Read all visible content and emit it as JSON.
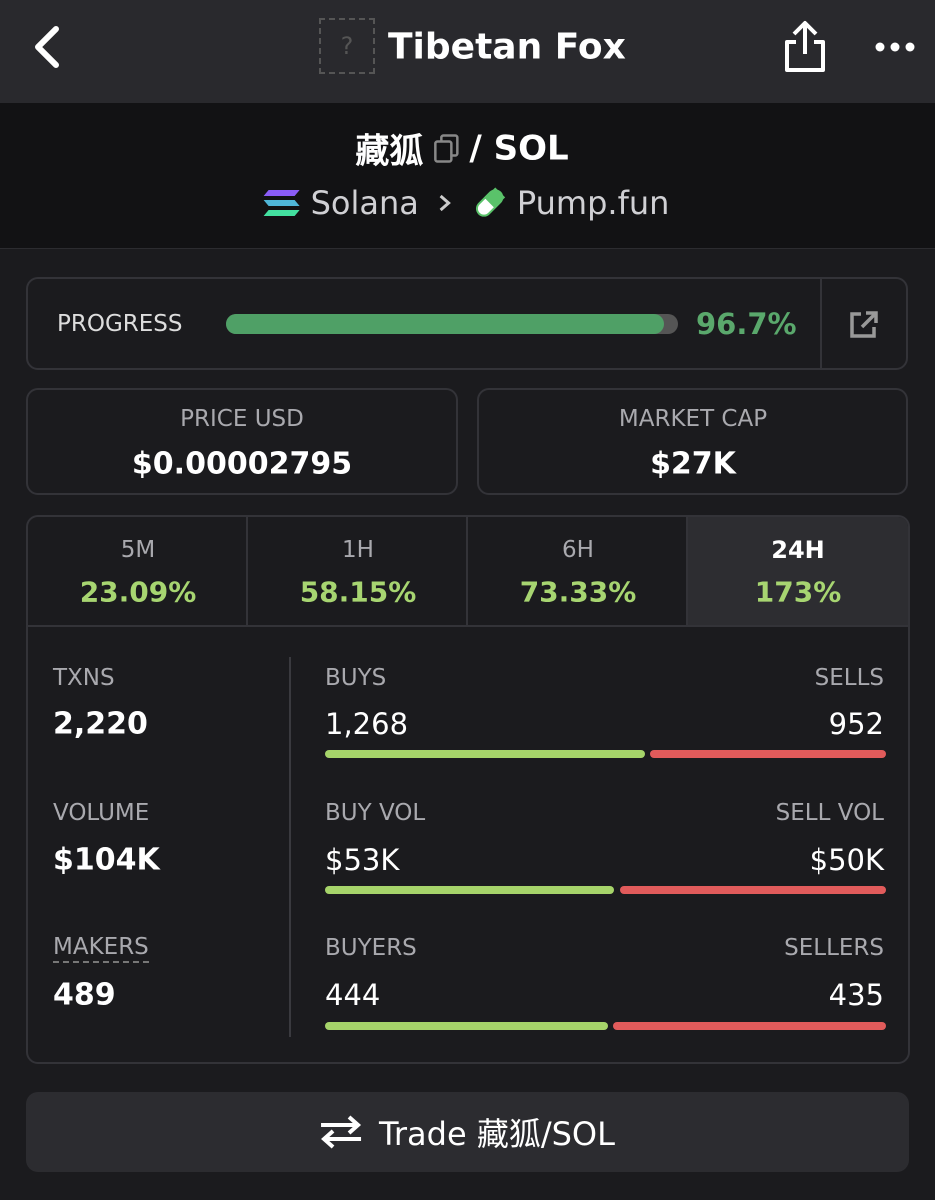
{
  "header": {
    "title": "Tibetan Fox",
    "icon_placeholder": "?"
  },
  "pair": {
    "base": "藏狐",
    "quote": "/ SOL",
    "chain": "Solana",
    "dex": "Pump.fun"
  },
  "progress": {
    "label": "PROGRESS",
    "value": "96.7%"
  },
  "price": {
    "label": "PRICE USD",
    "value": "$0.00002795"
  },
  "market_cap": {
    "label": "MARKET CAP",
    "value": "$27K"
  },
  "tabs": [
    {
      "label": "5M",
      "change": "23.09%"
    },
    {
      "label": "1H",
      "change": "58.15%"
    },
    {
      "label": "6H",
      "change": "73.33%"
    },
    {
      "label": "24H",
      "change": "173%"
    }
  ],
  "stats": [
    {
      "label": "TXNS",
      "value": "2,220"
    },
    {
      "label": "VOLUME",
      "value": "$104K"
    },
    {
      "label": "MAKERS",
      "value": "489"
    }
  ],
  "splits": [
    {
      "left_label": "BUYS",
      "left_value": "1,268",
      "right_label": "SELLS",
      "right_value": "952"
    },
    {
      "left_label": "BUY VOL",
      "left_value": "$53K",
      "right_label": "SELL VOL",
      "right_value": "$50K"
    },
    {
      "left_label": "BUYERS",
      "left_value": "444",
      "right_label": "SELLERS",
      "right_value": "435"
    }
  ],
  "trade_button": "Trade 藏狐/SOL"
}
